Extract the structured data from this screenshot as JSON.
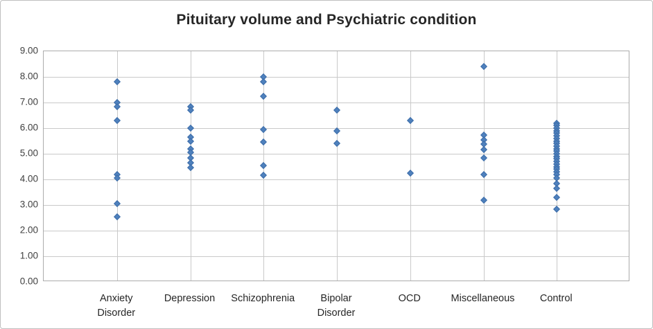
{
  "chart_data": {
    "type": "scatter",
    "title": "Pituitary volume and Psychiatric condition",
    "xlabel": "",
    "ylabel": "",
    "ylim": [
      0,
      9
    ],
    "ytick_labels_top_to_bottom": [
      "9.00",
      "8.00",
      "7.00",
      "6.00",
      "5.00",
      "4.00",
      "3.00",
      "2.00",
      "1.00",
      "0.00"
    ],
    "grid": "major horizontal gridlines every 1.00 and vertical gridline at each category, light gray",
    "legend": "none",
    "marker": {
      "shape": "diamond",
      "fill": "#4F81BD",
      "stroke": "#3B6CA8"
    },
    "categories": [
      "Anxiety Disorder",
      "Depression",
      "Schizophrenia",
      "Bipolar Disorder",
      "OCD",
      "Miscellaneous",
      "Control"
    ],
    "category_label_lines": [
      [
        "Anxiety",
        "Disorder"
      ],
      [
        "Depression"
      ],
      [
        "Schizophrenia"
      ],
      [
        "Bipolar",
        "Disorder"
      ],
      [
        "OCD"
      ],
      [
        "Miscellaneous"
      ],
      [
        "Control"
      ]
    ],
    "series": [
      {
        "name": "Anxiety Disorder",
        "values": [
          7.8,
          7.0,
          6.85,
          6.3,
          4.2,
          4.05,
          3.05,
          2.55
        ]
      },
      {
        "name": "Depression",
        "values": [
          6.85,
          6.7,
          6.0,
          5.65,
          5.5,
          5.2,
          5.05,
          4.85,
          4.65,
          4.45
        ]
      },
      {
        "name": "Schizophrenia",
        "values": [
          8.0,
          7.8,
          7.25,
          5.95,
          5.45,
          4.55,
          4.15
        ]
      },
      {
        "name": "Bipolar Disorder",
        "values": [
          6.7,
          5.9,
          5.4
        ]
      },
      {
        "name": "OCD",
        "values": [
          6.3,
          4.25
        ]
      },
      {
        "name": "Miscellaneous",
        "values": [
          8.4,
          5.72,
          5.55,
          5.38,
          5.15,
          4.85,
          4.2,
          3.2
        ]
      },
      {
        "name": "Control",
        "values": [
          6.2,
          6.1,
          6.0,
          5.9,
          5.8,
          5.7,
          5.6,
          5.5,
          5.4,
          5.3,
          5.2,
          5.1,
          5.0,
          4.9,
          4.8,
          4.7,
          4.6,
          4.5,
          4.4,
          4.3,
          4.2,
          4.05,
          3.85,
          3.65,
          3.3,
          2.85
        ]
      }
    ],
    "colors": {
      "gridline": "#C9C9C9",
      "plot_border": "#ABABAB",
      "figure_border": "#BFBFBF",
      "title_text": "#262626",
      "tick_text": "#3F3F3F"
    }
  }
}
